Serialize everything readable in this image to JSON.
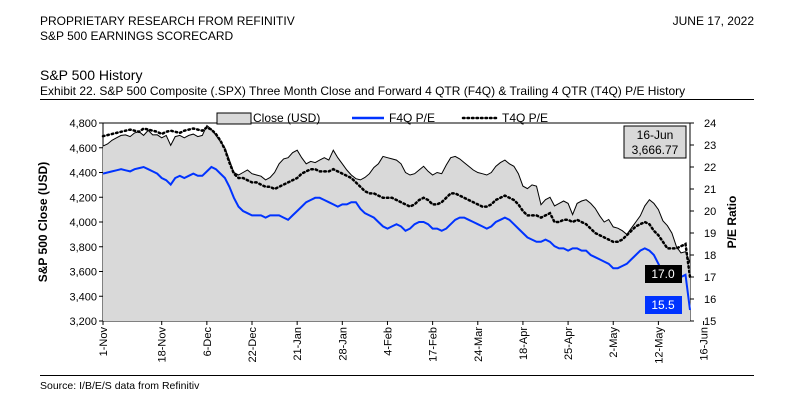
{
  "header": {
    "line1": "PROPRIETARY RESEARCH FROM REFINITIV",
    "line2": "S&P 500 EARNINGS SCORECARD",
    "date": "JUNE 17, 2022"
  },
  "section_title": "S&P 500 History",
  "exhibit": "Exhibit 22. S&P 500 Composite (.SPX) Three Month Close and Forward 4 QTR (F4Q) & Trailing 4 QTR (T4Q) P/E History",
  "source": "Source: I/B/E/S data from Refinitiv",
  "colors": {
    "area_fill": "#d9d9d9",
    "area_line": "#000000",
    "f4q": "#0033ff",
    "t4q": "#000000"
  },
  "chart_data": {
    "type": "area",
    "x_tick_labels": [
      "1-Nov",
      "18-Nov",
      "6-Dec",
      "22-Dec",
      "21-Jan",
      "28-Jan",
      "4-Feb",
      "17-Feb",
      "24-Mar",
      "18-Apr",
      "25-Apr",
      "2-May",
      "12-May",
      "16-Jun"
    ],
    "x_tick_index": [
      0,
      13,
      23,
      33,
      43,
      53,
      63,
      73,
      83,
      93,
      103,
      113,
      123,
      133
    ],
    "ylabel_left": "S&P 500 Close (USD)",
    "ylabel_right": "P/E Ratio",
    "ylim_left": [
      3200,
      4800
    ],
    "yticks_left": [
      "3,200",
      "3,400",
      "3,600",
      "3,800",
      "4,000",
      "4,200",
      "4,400",
      "4,600",
      "4,800"
    ],
    "ylim_right": [
      15,
      24
    ],
    "yticks_right": [
      "15",
      "16",
      "17",
      "18",
      "19",
      "20",
      "21",
      "22",
      "23",
      "24"
    ],
    "legend": {
      "close": "Close (USD)",
      "f4q": "F4Q P/E",
      "t4q": "T4Q P/E"
    },
    "series": [
      {
        "name": "Close (USD)",
        "axis": "left",
        "style": "area",
        "values": [
          4613,
          4630,
          4660,
          4680,
          4700,
          4704,
          4690,
          4720,
          4730,
          4700,
          4740,
          4704,
          4705,
          4680,
          4700,
          4620,
          4690,
          4700,
          4680,
          4700,
          4710,
          4690,
          4700,
          4780,
          4750,
          4700,
          4650,
          4600,
          4500,
          4400,
          4380,
          4400,
          4420,
          4390,
          4380,
          4370,
          4340,
          4360,
          4400,
          4470,
          4510,
          4520,
          4560,
          4580,
          4520,
          4470,
          4490,
          4480,
          4500,
          4520,
          4500,
          4580,
          4520,
          4470,
          4420,
          4380,
          4350,
          4340,
          4360,
          4390,
          4440,
          4470,
          4530,
          4520,
          4510,
          4500,
          4470,
          4400,
          4380,
          4390,
          4420,
          4450,
          4410,
          4380,
          4400,
          4390,
          4460,
          4520,
          4530,
          4510,
          4480,
          4450,
          4420,
          4400,
          4390,
          4380,
          4400,
          4450,
          4480,
          4500,
          4470,
          4450,
          4390,
          4290,
          4270,
          4300,
          4290,
          4140,
          4180,
          4200,
          4130,
          4150,
          4170,
          4150,
          4060,
          4150,
          4170,
          4180,
          4150,
          4110,
          4050,
          4000,
          4020,
          3960,
          3950,
          3930,
          3900,
          3950,
          4000,
          4050,
          4130,
          4180,
          4150,
          4100,
          4010,
          3970,
          3910,
          3800,
          3750,
          3760,
          3670
        ],
        "last_label": "16-Jun",
        "last_value_label": "3,666.77"
      },
      {
        "name": "F4Q P/E",
        "axis": "right",
        "style": "solid",
        "values": [
          21.7,
          21.75,
          21.8,
          21.85,
          21.9,
          21.85,
          21.8,
          21.9,
          21.95,
          22.0,
          21.9,
          21.8,
          21.7,
          21.5,
          21.4,
          21.2,
          21.5,
          21.6,
          21.5,
          21.6,
          21.7,
          21.6,
          21.6,
          21.8,
          22.0,
          21.9,
          21.7,
          21.5,
          21.1,
          20.6,
          20.2,
          20.0,
          19.9,
          19.8,
          19.8,
          19.8,
          19.7,
          19.8,
          19.8,
          19.8,
          19.7,
          19.6,
          19.8,
          20.0,
          20.2,
          20.4,
          20.5,
          20.6,
          20.6,
          20.5,
          20.4,
          20.3,
          20.2,
          20.3,
          20.3,
          20.4,
          20.4,
          20.1,
          19.9,
          19.8,
          19.7,
          19.5,
          19.3,
          19.2,
          19.3,
          19.4,
          19.3,
          19.1,
          19.2,
          19.4,
          19.5,
          19.5,
          19.4,
          19.2,
          19.2,
          19.1,
          19.2,
          19.4,
          19.6,
          19.7,
          19.7,
          19.6,
          19.5,
          19.4,
          19.3,
          19.2,
          19.3,
          19.5,
          19.6,
          19.7,
          19.6,
          19.4,
          19.2,
          19.0,
          18.8,
          18.7,
          18.6,
          18.6,
          18.7,
          18.6,
          18.4,
          18.3,
          18.3,
          18.2,
          18.3,
          18.3,
          18.2,
          18.2,
          18.0,
          17.9,
          17.8,
          17.7,
          17.6,
          17.4,
          17.4,
          17.5,
          17.6,
          17.8,
          18.0,
          18.2,
          18.3,
          18.2,
          18.0,
          17.6,
          17.2,
          16.9,
          16.9,
          16.9,
          17.0,
          17.1,
          15.5
        ],
        "last_value_label": "15.5"
      },
      {
        "name": "T4Q P/E",
        "axis": "right",
        "style": "dotted",
        "values": [
          23.4,
          23.45,
          23.5,
          23.55,
          23.6,
          23.65,
          23.7,
          23.65,
          23.6,
          23.75,
          23.7,
          23.65,
          23.6,
          23.5,
          23.6,
          23.65,
          23.6,
          23.55,
          23.65,
          23.7,
          23.75,
          23.7,
          23.65,
          23.8,
          23.7,
          23.5,
          23.2,
          22.8,
          22.2,
          21.7,
          21.5,
          21.5,
          21.4,
          21.3,
          21.3,
          21.2,
          21.1,
          21.1,
          21.0,
          21.1,
          21.2,
          21.3,
          21.4,
          21.5,
          21.7,
          21.8,
          21.9,
          21.9,
          21.8,
          21.8,
          21.8,
          21.9,
          21.8,
          21.7,
          21.6,
          21.5,
          21.3,
          21.1,
          20.9,
          20.8,
          20.8,
          20.7,
          20.6,
          20.6,
          20.6,
          20.5,
          20.4,
          20.3,
          20.2,
          20.3,
          20.5,
          20.6,
          20.5,
          20.3,
          20.3,
          20.4,
          20.6,
          20.8,
          20.8,
          20.7,
          20.6,
          20.5,
          20.4,
          20.3,
          20.2,
          20.2,
          20.3,
          20.5,
          20.6,
          20.7,
          20.6,
          20.5,
          20.3,
          20.0,
          19.8,
          19.8,
          19.8,
          19.7,
          19.8,
          19.9,
          19.5,
          19.5,
          19.6,
          19.6,
          19.5,
          19.6,
          19.5,
          19.4,
          19.2,
          19.0,
          18.9,
          18.8,
          18.7,
          18.6,
          18.6,
          18.7,
          18.9,
          19.1,
          19.3,
          19.4,
          19.5,
          19.4,
          19.1,
          18.9,
          18.6,
          18.3,
          18.3,
          18.3,
          18.4,
          18.5,
          17.0
        ],
        "last_value_label": "17.0"
      }
    ]
  }
}
